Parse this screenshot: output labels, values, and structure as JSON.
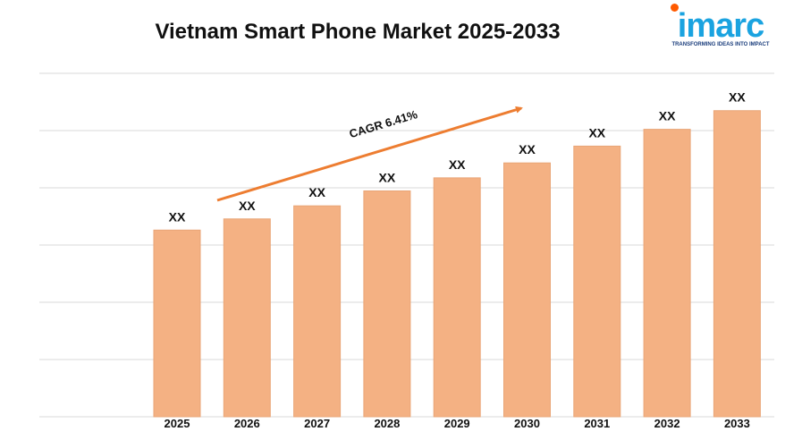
{
  "logo": {
    "text": "imarc",
    "tagline": "TRANSFORMING IDEAS INTO IMPACT"
  },
  "chart_data": {
    "type": "bar",
    "title": "Vietnam Smart Phone Market 2025-2033",
    "categories": [
      "2025",
      "2026",
      "2027",
      "2028",
      "2029",
      "2030",
      "2031",
      "2032",
      "2033"
    ],
    "values": [
      1.0,
      1.06,
      1.13,
      1.21,
      1.28,
      1.36,
      1.45,
      1.54,
      1.64
    ],
    "data_labels": [
      "XX",
      "XX",
      "XX",
      "XX",
      "XX",
      "XX",
      "XX",
      "XX",
      "XX"
    ],
    "annotation": "CAGR  6.41%",
    "ylim": [
      0,
      1.84
    ],
    "grid": true,
    "legend": "none",
    "colors": {
      "bar": "#f4b183",
      "bar_edge": "#e9a577",
      "arrow": "#ed7d31",
      "grid": "#d9d9d9",
      "logo": "#1aa3e0",
      "logo_accent": "#ff5a00"
    }
  }
}
